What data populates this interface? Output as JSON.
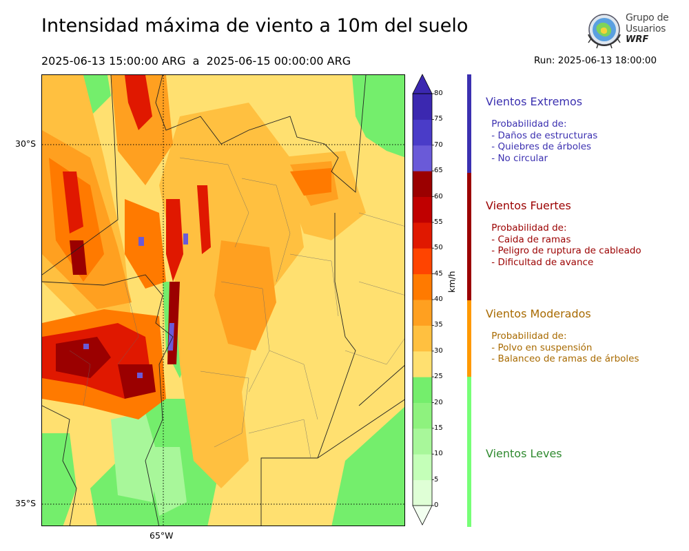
{
  "header": {
    "title": "Intensidad máxima de viento a 10m del suelo",
    "period": "2025-06-13 15:00:00 ARG  a  2025-06-15 00:00:00 ARG",
    "run": "Run: 2025-06-13 18:00:00"
  },
  "logo": {
    "line1": "Grupo de",
    "line2": "Usuarios",
    "line3": "WRF"
  },
  "map": {
    "lat_labels": [
      "30°S",
      "35°S"
    ],
    "lon_labels": [
      "65°W"
    ],
    "gridlines": "dotted",
    "field": "maximum 10m wind speed"
  },
  "colorbar": {
    "unit": "km/h",
    "ticks": [
      "0",
      "5",
      "10",
      "15",
      "20",
      "25",
      "30",
      "35",
      "40",
      "45",
      "50",
      "55",
      "60",
      "65",
      "70",
      "75",
      "80"
    ],
    "colors": [
      "#f2fff0",
      "#dfffd6",
      "#c4ffb8",
      "#a8f79a",
      "#8ef27e",
      "#74ee6c",
      "#ffe070",
      "#ffc040",
      "#ffa020",
      "#ff7a00",
      "#ff4400",
      "#e01800",
      "#c00000",
      "#9b0000",
      "#6a5ad8",
      "#4a3cc8",
      "#3b28b0"
    ],
    "extend": "both"
  },
  "categories": [
    {
      "title": "Vientos Extremos",
      "color": "#3b30b0",
      "desc": " Probabilidad de:\n - Daños de estructuras\n - Quiebres de árboles\n - No circular"
    },
    {
      "title": "Vientos Fuertes",
      "color": "#9b0000",
      "desc": " Probabilidad de:\n - Caida de ramas\n - Peligro de ruptura de cableado\n - Dificultad de avance"
    },
    {
      "title": "Vientos Moderados",
      "color": "#ff9900",
      "desc": " Probabilidad de:\n - Polvo en suspensión\n - Balanceo de ramas de árboles"
    },
    {
      "title": "Vientos Leves",
      "color": "#77ff77",
      "desc": ""
    }
  ]
}
